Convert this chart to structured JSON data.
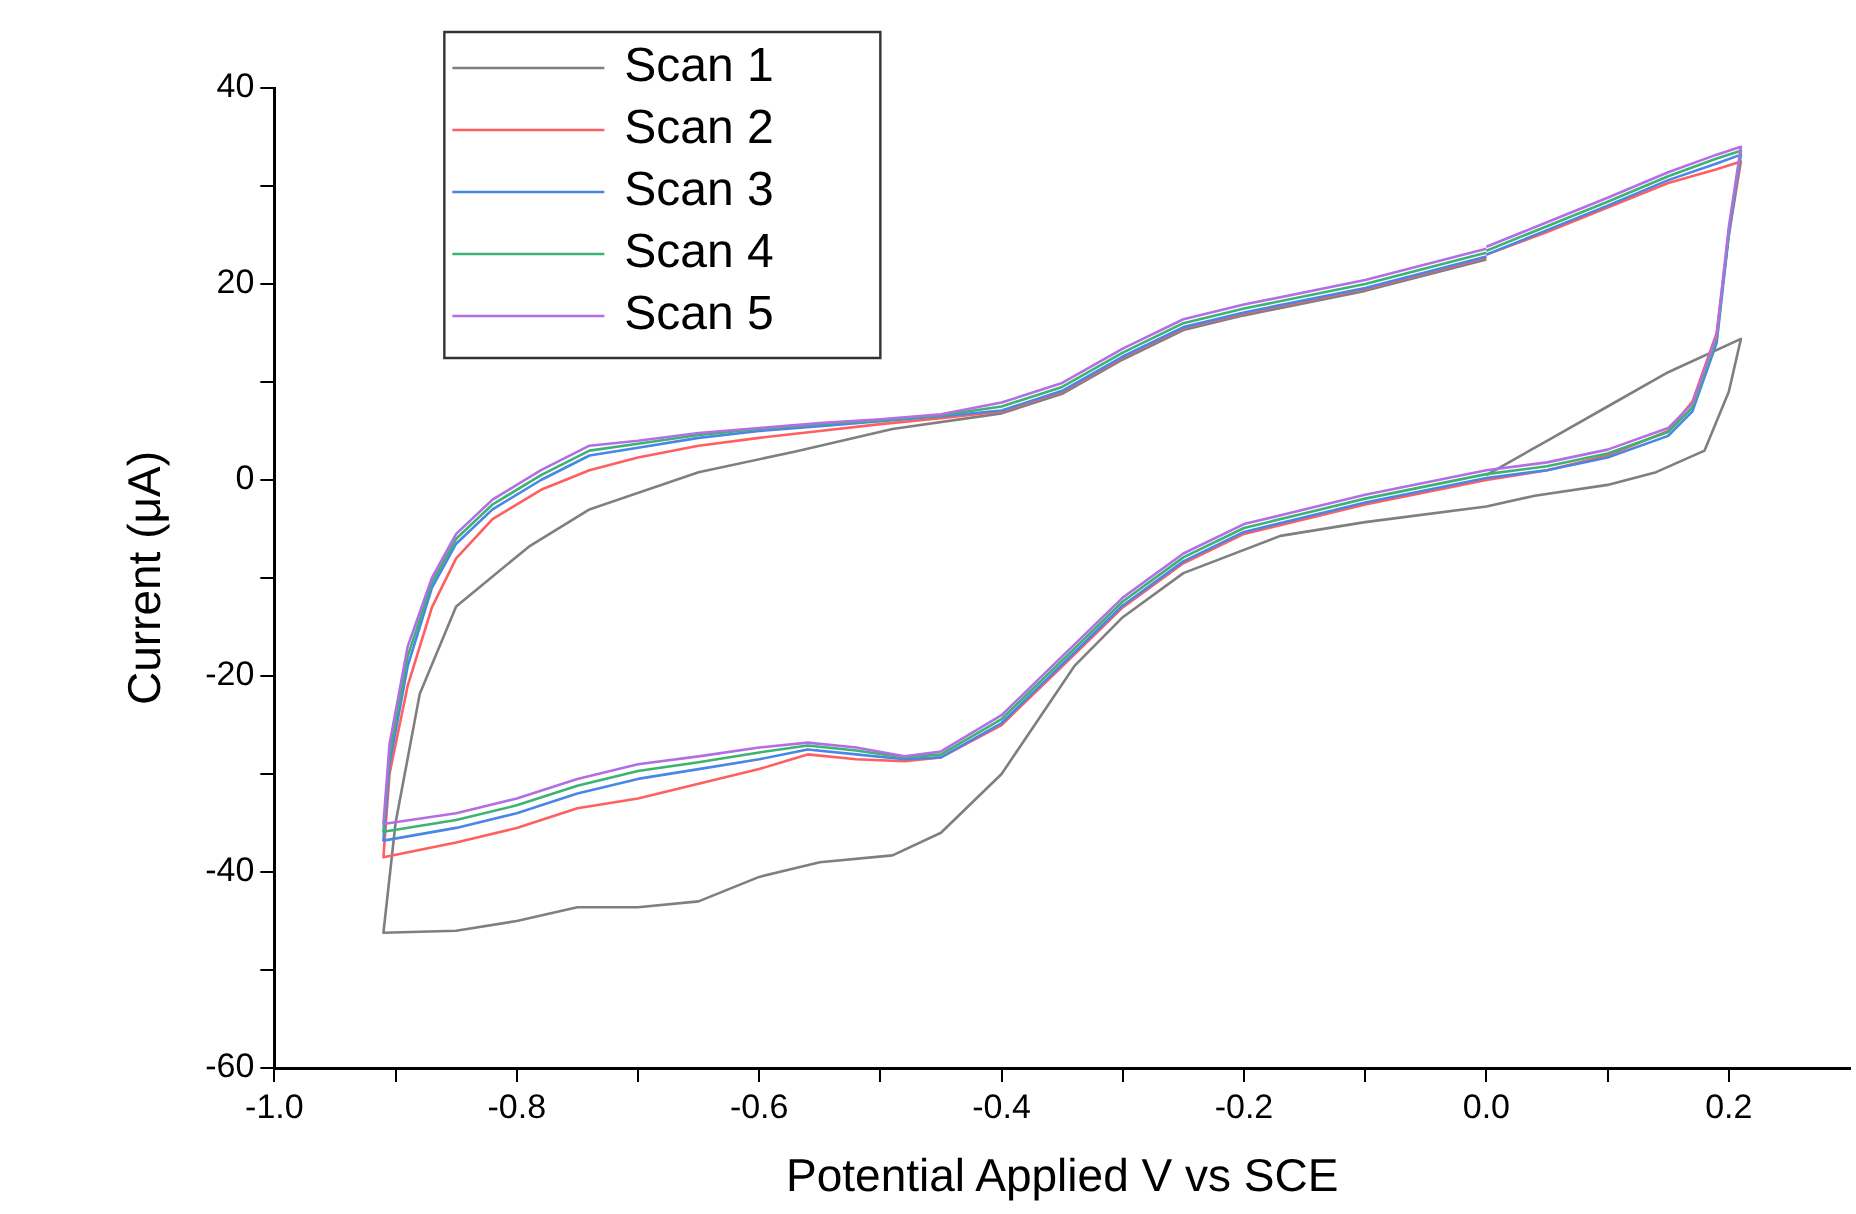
{
  "chart_data": {
    "type": "line",
    "xlabel": "Potential Applied V vs SCE",
    "ylabel": "Current (μA)",
    "xlim": [
      -1.0,
      0.3
    ],
    "ylim": [
      -60,
      40
    ],
    "xticks": [
      {
        "value": -1.0,
        "label": "-1.0"
      },
      {
        "value": -0.9,
        "label": null
      },
      {
        "value": -0.8,
        "label": "-0.8"
      },
      {
        "value": -0.7,
        "label": null
      },
      {
        "value": -0.6,
        "label": "-0.6"
      },
      {
        "value": -0.5,
        "label": null
      },
      {
        "value": -0.4,
        "label": "-0.4"
      },
      {
        "value": -0.3,
        "label": null
      },
      {
        "value": -0.2,
        "label": "-0.2"
      },
      {
        "value": -0.1,
        "label": null
      },
      {
        "value": 0.0,
        "label": "0.0"
      },
      {
        "value": 0.1,
        "label": null
      },
      {
        "value": 0.2,
        "label": "0.2"
      }
    ],
    "yticks": [
      -60,
      {
        "value": -50,
        "label": null
      },
      -40,
      {
        "value": -30,
        "label": null
      },
      -20,
      {
        "value": -10,
        "label": null
      },
      0,
      {
        "value": 10,
        "label": null
      },
      20,
      {
        "value": 30,
        "label": null
      },
      40
    ],
    "grid": false,
    "legend": "top left",
    "marker": "none",
    "line_style": "solid",
    "series": [
      {
        "name": "Scan 1",
        "color": "#7f7f7f",
        "x": [
          0.0,
          0.05,
          0.1,
          0.15,
          0.21,
          0.2,
          0.18,
          0.14,
          0.1,
          0.04,
          0.0,
          -0.1,
          -0.17,
          -0.25,
          -0.3,
          -0.34,
          -0.4,
          -0.45,
          -0.49,
          -0.55,
          -0.6,
          -0.65,
          -0.7,
          -0.75,
          -0.8,
          -0.85,
          -0.91,
          -0.9,
          -0.88,
          -0.85,
          -0.79,
          -0.74,
          -0.65,
          -0.57,
          -0.49,
          -0.4,
          -0.35,
          -0.3,
          -0.25,
          -0.2,
          -0.1,
          0.0
        ],
        "values": [
          0.5,
          4,
          7.5,
          11,
          14.4,
          9,
          3,
          0.8,
          -0.5,
          -1.6,
          -2.7,
          -4.3,
          -5.7,
          -9.5,
          -14,
          -19,
          -30,
          -36,
          -38.3,
          -39,
          -40.5,
          -43,
          -43.6,
          -43.6,
          -45,
          -46,
          -46.2,
          -35,
          -21.8,
          -12.9,
          -6.8,
          -3,
          0.8,
          2.9,
          5.2,
          6.8,
          8.8,
          12.3,
          15.3,
          16.8,
          19.3,
          22.5
        ]
      },
      {
        "name": "Scan 2",
        "color": "#ff5f5f",
        "x": [
          0.0,
          0.05,
          0.1,
          0.15,
          0.19,
          0.21,
          0.2,
          0.19,
          0.17,
          0.15,
          0.1,
          0.05,
          0.0,
          -0.1,
          -0.2,
          -0.25,
          -0.3,
          -0.35,
          -0.4,
          -0.45,
          -0.48,
          -0.52,
          -0.56,
          -0.6,
          -0.65,
          -0.7,
          -0.75,
          -0.8,
          -0.85,
          -0.91,
          -0.905,
          -0.89,
          -0.87,
          -0.85,
          -0.82,
          -0.78,
          -0.74,
          -0.7,
          -0.65,
          -0.6,
          -0.55,
          -0.5,
          -0.45,
          -0.4,
          -0.35,
          -0.3,
          -0.25,
          -0.2,
          -0.1,
          0.0
        ],
        "values": [
          23,
          25.3,
          27.8,
          30.3,
          31.7,
          32.5,
          25,
          15,
          8,
          5,
          2.5,
          1,
          0,
          -2.5,
          -5.5,
          -8.5,
          -13,
          -19,
          -25,
          -28.3,
          -28.7,
          -28.5,
          -28,
          -29.5,
          -31,
          -32.5,
          -33.5,
          -35.5,
          -37,
          -38.5,
          -30,
          -21,
          -13,
          -8,
          -4,
          -1,
          1,
          2.3,
          3.5,
          4.3,
          5,
          5.7,
          6.3,
          7,
          9,
          12.5,
          15.5,
          17,
          19.5,
          22.7
        ]
      },
      {
        "name": "Scan 3",
        "color": "#4a86e8",
        "x": [
          0.0,
          0.05,
          0.1,
          0.15,
          0.19,
          0.21,
          0.2,
          0.19,
          0.17,
          0.15,
          0.1,
          0.05,
          0.0,
          -0.1,
          -0.2,
          -0.25,
          -0.3,
          -0.35,
          -0.4,
          -0.45,
          -0.48,
          -0.52,
          -0.56,
          -0.6,
          -0.65,
          -0.7,
          -0.75,
          -0.8,
          -0.85,
          -0.91,
          -0.905,
          -0.89,
          -0.87,
          -0.85,
          -0.82,
          -0.78,
          -0.74,
          -0.7,
          -0.65,
          -0.6,
          -0.55,
          -0.5,
          -0.45,
          -0.4,
          -0.35,
          -0.3,
          -0.25,
          -0.2,
          -0.1,
          0.0
        ],
        "values": [
          23,
          25.5,
          28,
          30.6,
          32.3,
          33.2,
          25,
          14,
          7,
          4.5,
          2.3,
          1,
          0.2,
          -2.3,
          -5.3,
          -8.3,
          -12.8,
          -18.8,
          -24.8,
          -28.3,
          -28.5,
          -28,
          -27.5,
          -28.5,
          -29.5,
          -30.5,
          -32,
          -34,
          -35.5,
          -36.8,
          -29,
          -19,
          -11,
          -6.5,
          -3,
          0,
          2.5,
          3.3,
          4.3,
          5,
          5.5,
          6,
          6.5,
          7.1,
          9.1,
          12.6,
          15.6,
          17.1,
          19.6,
          22.8
        ]
      },
      {
        "name": "Scan 4",
        "color": "#3cb371",
        "x": [
          0.0,
          0.05,
          0.1,
          0.15,
          0.19,
          0.21,
          0.2,
          0.19,
          0.17,
          0.15,
          0.1,
          0.05,
          0.0,
          -0.1,
          -0.2,
          -0.25,
          -0.3,
          -0.35,
          -0.4,
          -0.45,
          -0.48,
          -0.52,
          -0.56,
          -0.6,
          -0.65,
          -0.7,
          -0.75,
          -0.8,
          -0.85,
          -0.91,
          -0.905,
          -0.89,
          -0.87,
          -0.85,
          -0.82,
          -0.78,
          -0.74,
          -0.7,
          -0.65,
          -0.6,
          -0.55,
          -0.5,
          -0.45,
          -0.4,
          -0.35,
          -0.3,
          -0.25,
          -0.2,
          -0.1,
          0.0
        ],
        "values": [
          23.4,
          25.9,
          28.4,
          31,
          32.8,
          33.6,
          25.4,
          14.4,
          7.4,
          4.9,
          2.7,
          1.4,
          0.6,
          -1.9,
          -4.9,
          -7.9,
          -12.4,
          -18.4,
          -24.4,
          -28,
          -28.3,
          -27.6,
          -27.1,
          -27.8,
          -28.8,
          -29.7,
          -31.2,
          -33.2,
          -34.7,
          -35.9,
          -28,
          -18,
          -10.5,
          -6,
          -2.5,
          0.5,
          3,
          3.7,
          4.6,
          5.2,
          5.7,
          6.1,
          6.6,
          7.5,
          9.5,
          13,
          16,
          17.5,
          20,
          23.2
        ]
      },
      {
        "name": "Scan 5",
        "color": "#b36ee6",
        "x": [
          0.0,
          0.05,
          0.1,
          0.15,
          0.19,
          0.21,
          0.2,
          0.19,
          0.17,
          0.15,
          0.1,
          0.05,
          0.0,
          -0.1,
          -0.2,
          -0.25,
          -0.3,
          -0.35,
          -0.4,
          -0.45,
          -0.48,
          -0.52,
          -0.56,
          -0.6,
          -0.65,
          -0.7,
          -0.75,
          -0.8,
          -0.85,
          -0.91,
          -0.905,
          -0.89,
          -0.87,
          -0.85,
          -0.82,
          -0.78,
          -0.74,
          -0.7,
          -0.65,
          -0.6,
          -0.55,
          -0.5,
          -0.45,
          -0.4,
          -0.35,
          -0.3,
          -0.25,
          -0.2,
          -0.1,
          0.0
        ],
        "values": [
          23.8,
          26.3,
          28.8,
          31.4,
          33.2,
          34,
          25.8,
          14.8,
          7.8,
          5.3,
          3.1,
          1.8,
          1,
          -1.5,
          -4.5,
          -7.5,
          -12,
          -18,
          -24,
          -27.7,
          -28.2,
          -27.3,
          -26.8,
          -27.3,
          -28.2,
          -29,
          -30.5,
          -32.5,
          -34,
          -35.1,
          -27,
          -17,
          -10,
          -5.5,
          -2,
          1,
          3.5,
          4,
          4.8,
          5.3,
          5.8,
          6.2,
          6.7,
          7.9,
          9.9,
          13.4,
          16.4,
          17.9,
          20.4,
          23.6
        ]
      }
    ]
  }
}
